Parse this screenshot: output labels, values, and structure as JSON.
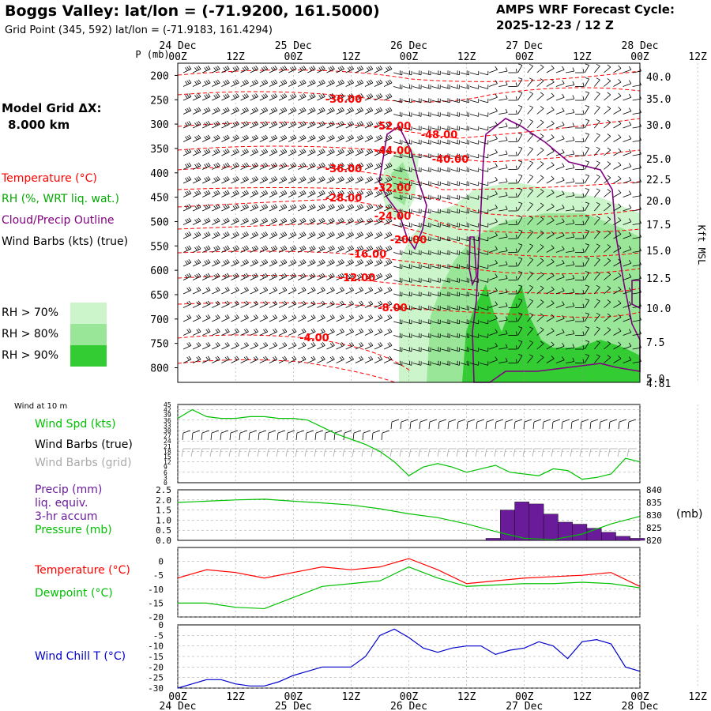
{
  "header": {
    "title": "Boggs Valley:  lat/lon = (-71.9200, 161.5000)",
    "grid_point": "Grid Point (345, 592) lat/lon = (-71.9183, 161.4294)",
    "cycle_label": "AMPS WRF Forecast Cycle:",
    "cycle_value": "2025-12-23 / 12  Z"
  },
  "legend": {
    "model_grid_label": "Model Grid ΔX:",
    "model_grid_value": "8.000 km",
    "temperature": "Temperature (°C)",
    "rh": "RH (%, WRT liq. wat.)",
    "cloud": "Cloud/Precip Outline",
    "wind_barbs": "Wind Barbs (kts) (true)",
    "rh70": "RH > 70%",
    "rh80": "RH > 80%",
    "rh90": "RH > 90%",
    "rh70_color": "#ccf5cc",
    "rh80_color": "#99e699",
    "rh90_color": "#33cc33"
  },
  "colors": {
    "temperature": "#ff0000",
    "rh_text": "#00aa00",
    "cloud": "#800080",
    "wind": "#000000",
    "wind_grid": "#aaaaaa",
    "precip": "#6a1b9a",
    "pressure": "#00c000",
    "dewpoint": "#00c000",
    "windchill": "#0000cc",
    "windspd": "#00c000",
    "grid": "#999999"
  },
  "chart_data": [
    {
      "id": "cross_section",
      "type": "heatmap",
      "title": "Time-height cross section",
      "y_left_label": "P (mb)",
      "y_left_ticks": [
        "200",
        "250",
        "300",
        "350",
        "400",
        "450",
        "500",
        "550",
        "600",
        "650",
        "700",
        "750",
        "800"
      ],
      "y_right_label": "Kft MSL",
      "y_right_ticks": [
        "40.0",
        "35.0",
        "30.0",
        "25.0",
        "22.5",
        "20.0",
        "17.5",
        "15.0",
        "12.5",
        "10.0",
        "7.5",
        "5.0",
        "4.81"
      ],
      "x_top_days": [
        "24 Dec",
        "25 Dec",
        "26 Dec",
        "27 Dec",
        "28 Dec"
      ],
      "x_hours": [
        "00Z",
        "12Z",
        "00Z",
        "12Z",
        "00Z",
        "12Z",
        "00Z",
        "12Z",
        "00Z",
        "12Z"
      ],
      "x_range_hours": [
        0,
        96
      ],
      "temperature_labels": [
        "-36.00",
        "-52.00",
        "-48.00",
        "-44.00",
        "-40.00",
        "-36.00",
        "-32.00",
        "-28.00",
        "-24.00",
        "-20.00",
        "-16.00",
        "-12.00",
        "-8.00",
        "-4.00"
      ]
    },
    {
      "id": "wind10m",
      "type": "line",
      "title": "Wind at 10 m",
      "series_labels": [
        "Wind Spd (kts)",
        "Wind Barbs (true)",
        "Wind Barbs (grid)"
      ],
      "y_ticks": [
        "45",
        "42",
        "39",
        "36",
        "33",
        "30",
        "27",
        "24",
        "21",
        "18",
        "15",
        "12",
        "9",
        "6",
        "3",
        "0"
      ],
      "ylim": [
        0,
        45
      ],
      "x": [
        0,
        3,
        6,
        9,
        12,
        15,
        18,
        21,
        24,
        27,
        30,
        33,
        36,
        39,
        42,
        45,
        48,
        51,
        54,
        57,
        60,
        63,
        66,
        69,
        72,
        75,
        78,
        81,
        84,
        87,
        90,
        93,
        96
      ],
      "values": [
        37,
        42,
        38,
        37,
        37,
        38,
        38,
        37,
        37,
        36,
        32,
        28,
        25,
        22,
        18,
        12,
        4,
        9,
        11,
        9,
        6,
        8,
        10,
        6,
        5,
        4,
        8,
        7,
        2,
        3,
        5,
        14,
        12
      ]
    },
    {
      "id": "precip_pressure",
      "type": "bar",
      "series_labels": [
        "Precip (mm)",
        "liq. equiv.",
        "3-hr accum",
        "Pressure (mb)"
      ],
      "y_left_ticks": [
        "2.5",
        "2.0",
        "1.5",
        "1.0",
        "0.5",
        "0.0"
      ],
      "ylim_left": [
        0,
        2.5
      ],
      "y_right_ticks": [
        "840",
        "835",
        "830",
        "825",
        "820"
      ],
      "ylim_right": [
        820,
        840
      ],
      "right_unit": "(mb)",
      "precip_x": [
        64,
        67,
        70,
        73,
        76,
        79,
        82,
        85,
        88,
        91,
        94
      ],
      "precip_values": [
        0.1,
        1.5,
        1.9,
        1.8,
        1.3,
        0.9,
        0.8,
        0.6,
        0.4,
        0.2,
        0.1
      ],
      "pressure_x": [
        0,
        6,
        12,
        18,
        24,
        30,
        36,
        42,
        48,
        54,
        60,
        66,
        72,
        78,
        84,
        90,
        96
      ],
      "pressure_values": [
        835,
        835.5,
        836,
        836.3,
        835.5,
        834.8,
        834,
        832.5,
        830.5,
        829,
        826.5,
        823.5,
        820.8,
        820.3,
        822.5,
        826.5,
        829.5
      ]
    },
    {
      "id": "temp_dew",
      "type": "line",
      "series_labels": [
        "Temperature (°C)",
        "Dewpoint (°C)"
      ],
      "y_ticks": [
        "0",
        "-5",
        "-10",
        "-15",
        "-20"
      ],
      "ylim": [
        -20,
        5
      ],
      "x": [
        0,
        6,
        12,
        18,
        24,
        30,
        36,
        42,
        48,
        54,
        60,
        66,
        72,
        78,
        84,
        90,
        96
      ],
      "series": [
        {
          "name": "Temperature",
          "values": [
            -6,
            -3,
            -4,
            -6,
            -4,
            -2,
            -3,
            -2,
            1,
            -3,
            -8,
            -7,
            -6,
            -5.5,
            -5,
            -4,
            -9
          ]
        },
        {
          "name": "Dewpoint",
          "values": [
            -15,
            -15,
            -16.5,
            -17,
            -13,
            -9,
            -8,
            -7,
            -2,
            -6,
            -9,
            -8.5,
            -8,
            -8,
            -7.5,
            -8,
            -9.5
          ]
        }
      ]
    },
    {
      "id": "windchill",
      "type": "line",
      "series_labels": [
        "Wind Chill T (°C)"
      ],
      "y_ticks": [
        "-5",
        "-10",
        "-15",
        "-20",
        "-25",
        "-30"
      ],
      "y_top_tick": "0",
      "ylim": [
        -30,
        0
      ],
      "x": [
        0,
        3,
        6,
        9,
        12,
        15,
        18,
        21,
        24,
        27,
        30,
        33,
        36,
        39,
        42,
        45,
        48,
        51,
        54,
        57,
        60,
        63,
        66,
        69,
        72,
        75,
        78,
        81,
        84,
        87,
        90,
        93,
        96
      ],
      "values": [
        -30,
        -28,
        -26,
        -26,
        -28,
        -29,
        -29,
        -27,
        -24,
        -22,
        -20,
        -20,
        -20,
        -15,
        -5,
        -2,
        -6,
        -11,
        -13,
        -11,
        -10,
        -10,
        -14,
        -12,
        -11,
        -8,
        -10,
        -16,
        -8,
        -7,
        -9,
        -20,
        -22
      ]
    }
  ],
  "x_bottom_hours": [
    "00Z",
    "12Z",
    "00Z",
    "12Z",
    "00Z",
    "12Z",
    "00Z",
    "12Z",
    "00Z",
    "12Z"
  ],
  "x_bottom_days": [
    "24 Dec",
    "25 Dec",
    "26 Dec",
    "27 Dec",
    "28 Dec"
  ]
}
